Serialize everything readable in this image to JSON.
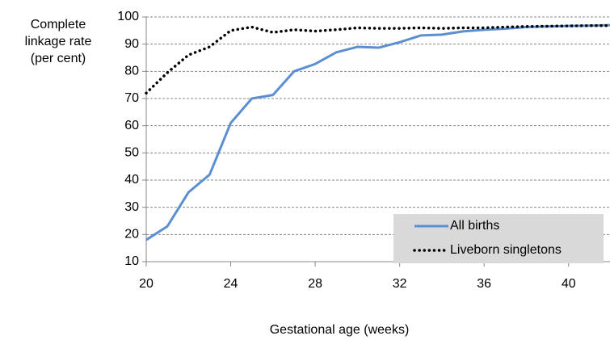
{
  "chart_data": {
    "type": "line",
    "ylabel": [
      "Complete",
      "linkage rate",
      "(per cent)"
    ],
    "xlabel": "Gestational age (weeks)",
    "x": [
      20,
      21,
      22,
      23,
      24,
      25,
      26,
      27,
      28,
      29,
      30,
      31,
      32,
      33,
      34,
      35,
      36,
      37,
      38,
      39,
      40,
      41,
      42
    ],
    "series": [
      {
        "name": "All births",
        "color": "#5b8fd1",
        "style": "solid",
        "values": [
          18,
          23,
          35.5,
          42,
          61,
          70,
          71.3,
          80,
          82.7,
          87,
          89,
          88.7,
          90.7,
          93.2,
          93.5,
          94.7,
          95.3,
          95.7,
          96.3,
          96.5,
          96.7,
          96.8,
          97
        ]
      },
      {
        "name": "Liveborn singletons",
        "color": "#000000",
        "style": "dotted",
        "values": [
          72,
          79.5,
          86,
          89,
          95,
          96.3,
          94.3,
          95.3,
          94.8,
          95.3,
          96,
          95.8,
          95.8,
          96,
          95.8,
          96,
          96,
          96.3,
          96.5,
          96.6,
          96.7,
          96.8,
          96.8
        ]
      }
    ],
    "xlim": [
      20,
      42
    ],
    "xticks": [
      20,
      24,
      28,
      32,
      36,
      40
    ],
    "ylim": [
      10,
      100
    ],
    "yticks": [
      10,
      20,
      30,
      40,
      50,
      60,
      70,
      80,
      90,
      100
    ],
    "grid": true,
    "legend": "lower right"
  }
}
